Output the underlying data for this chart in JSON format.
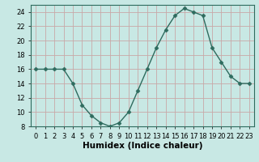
{
  "x": [
    0,
    1,
    2,
    3,
    4,
    5,
    6,
    7,
    8,
    9,
    10,
    11,
    12,
    13,
    14,
    15,
    16,
    17,
    18,
    19,
    20,
    21,
    22,
    23
  ],
  "y": [
    16,
    16,
    16,
    16,
    14,
    11,
    9.5,
    8.5,
    8,
    8.5,
    10,
    13,
    16,
    19,
    21.5,
    23.5,
    24.5,
    24,
    23.5,
    19,
    17,
    15,
    14,
    14
  ],
  "line_color": "#2e6b5e",
  "marker": "D",
  "marker_size": 2.5,
  "bg_color": "#c8e8e4",
  "grid_color": "#c8a8a8",
  "xlabel": "Humidex (Indice chaleur)",
  "ylim": [
    8,
    25
  ],
  "xlim": [
    -0.5,
    23.5
  ],
  "yticks": [
    8,
    10,
    12,
    14,
    16,
    18,
    20,
    22,
    24
  ],
  "xticks": [
    0,
    1,
    2,
    3,
    4,
    5,
    6,
    7,
    8,
    9,
    10,
    11,
    12,
    13,
    14,
    15,
    16,
    17,
    18,
    19,
    20,
    21,
    22,
    23
  ],
  "xtick_labels": [
    "0",
    "1",
    "2",
    "3",
    "4",
    "5",
    "6",
    "7",
    "8",
    "9",
    "10",
    "11",
    "12",
    "13",
    "14",
    "15",
    "16",
    "17",
    "18",
    "19",
    "20",
    "21",
    "22",
    "23"
  ],
  "tick_fontsize": 6,
  "xlabel_fontsize": 7.5
}
